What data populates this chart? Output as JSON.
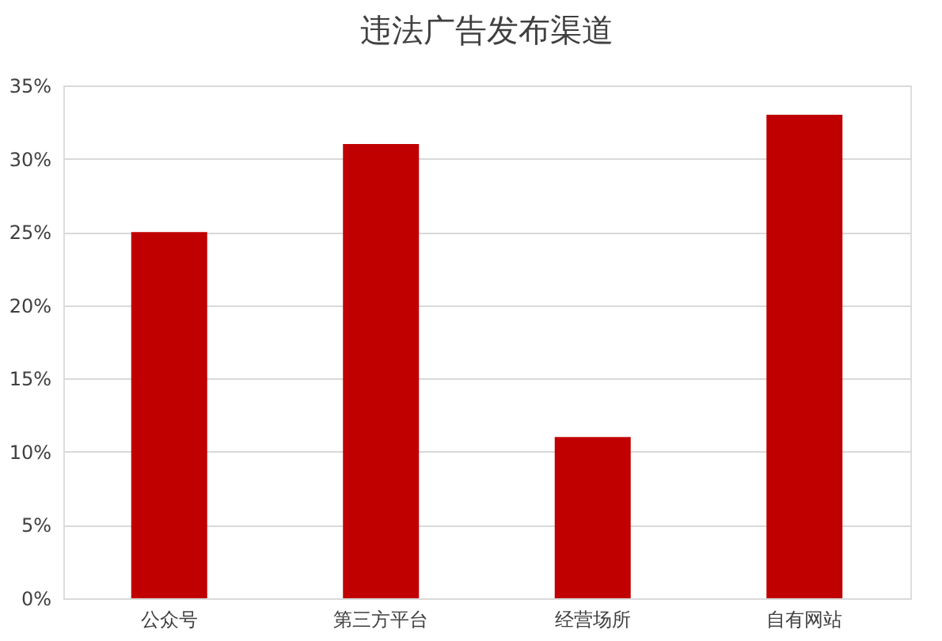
{
  "chart_data": {
    "type": "bar",
    "title": "违法广告发布渠道",
    "categories": [
      "公众号",
      "第三方平台",
      "经营场所",
      "自有网站"
    ],
    "values": [
      25,
      31,
      11,
      33
    ],
    "color": "#c00000",
    "ylim": [
      0,
      35
    ],
    "yticks": [
      {
        "value": 0,
        "label": "0%"
      },
      {
        "value": 5,
        "label": "5%"
      },
      {
        "value": 10,
        "label": "10%"
      },
      {
        "value": 15,
        "label": "15%"
      },
      {
        "value": 20,
        "label": "20%"
      },
      {
        "value": 25,
        "label": "25%"
      },
      {
        "value": 30,
        "label": "30%"
      },
      {
        "value": 35,
        "label": "35%"
      }
    ],
    "grid": "y"
  }
}
